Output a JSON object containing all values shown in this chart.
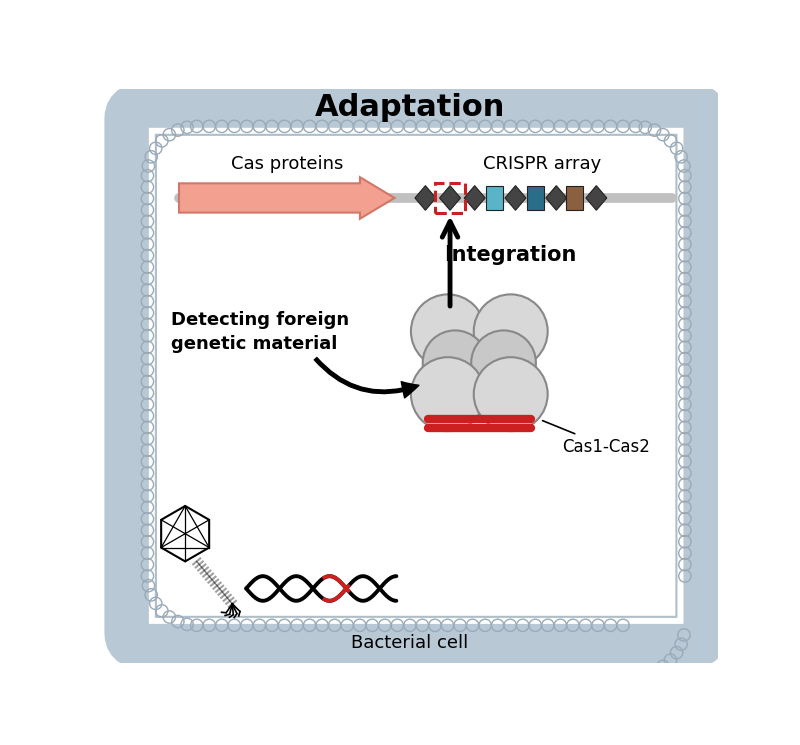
{
  "title": "Adaptation",
  "title_fontsize": 22,
  "title_fontweight": "bold",
  "bg_color": "#ffffff",
  "cas_proteins_label": "Cas proteins",
  "crispr_array_label": "CRISPR array",
  "integration_label": "Integration",
  "detecting_label": "Detecting foreign\ngenetic material",
  "cas1cas2_label": "Cas1-Cas2",
  "bacterial_cell_label": "Bacterial cell",
  "arrow_salmon_fc": "#f4a090",
  "arrow_salmon_ec": "#d07868",
  "diamond_color": "#444444",
  "spacer_light_blue": "#5ab4c8",
  "spacer_teal": "#2a6e8a",
  "spacer_brown": "#8b6040",
  "protein_color_light": "#d4d4d4",
  "protein_color_dark": "#b8b8b8",
  "red_color": "#cc2020",
  "line_gray": "#c0c0c0",
  "membrane_color": "#b0bec8",
  "membrane_inner": "#d0dae0"
}
